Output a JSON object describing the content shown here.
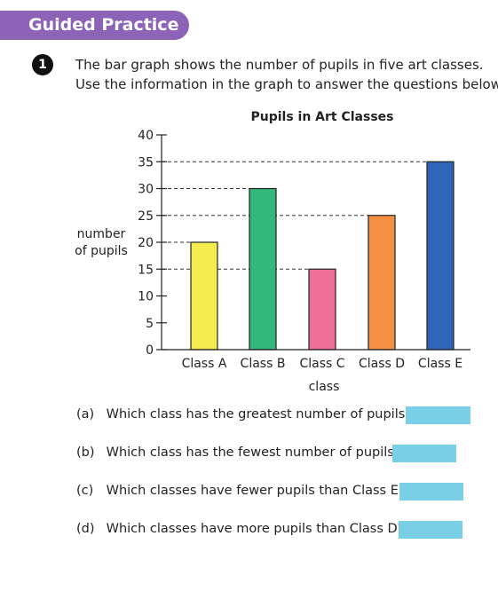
{
  "header": {
    "banner_label": "Guided Practice"
  },
  "question": {
    "number": "1",
    "intro_line1": "The bar graph shows the number of pupils in five art classes.",
    "intro_line2": "Use the information in the graph to answer the questions below."
  },
  "chart_data": {
    "type": "bar",
    "title": "Pupils in Art Classes",
    "xlabel": "class",
    "ylabel_line1": "number",
    "ylabel_line2": "of pupils",
    "categories": [
      "Class A",
      "Class B",
      "Class C",
      "Class D",
      "Class E"
    ],
    "values": [
      20,
      30,
      15,
      25,
      35
    ],
    "colors": [
      "#f4ec4f",
      "#33b77a",
      "#ef7097",
      "#f58f42",
      "#2f67b8"
    ],
    "ylim": [
      0,
      40
    ],
    "yticks": [
      0,
      5,
      10,
      15,
      20,
      25,
      30,
      35,
      40
    ],
    "grid": "dashed reference lines to bar tops"
  },
  "sub_questions": [
    {
      "label": "(a)",
      "text": "Which class has the greatest number of pupils?"
    },
    {
      "label": "(b)",
      "text": "Which class has the fewest number of pupils?"
    },
    {
      "label": "(c)",
      "text": "Which classes have fewer pupils than Class E?"
    },
    {
      "label": "(d)",
      "text": "Which classes have more pupils than Class D?"
    }
  ],
  "colors": {
    "banner": "#8d63b8",
    "answer_box": "#79cfe6"
  }
}
